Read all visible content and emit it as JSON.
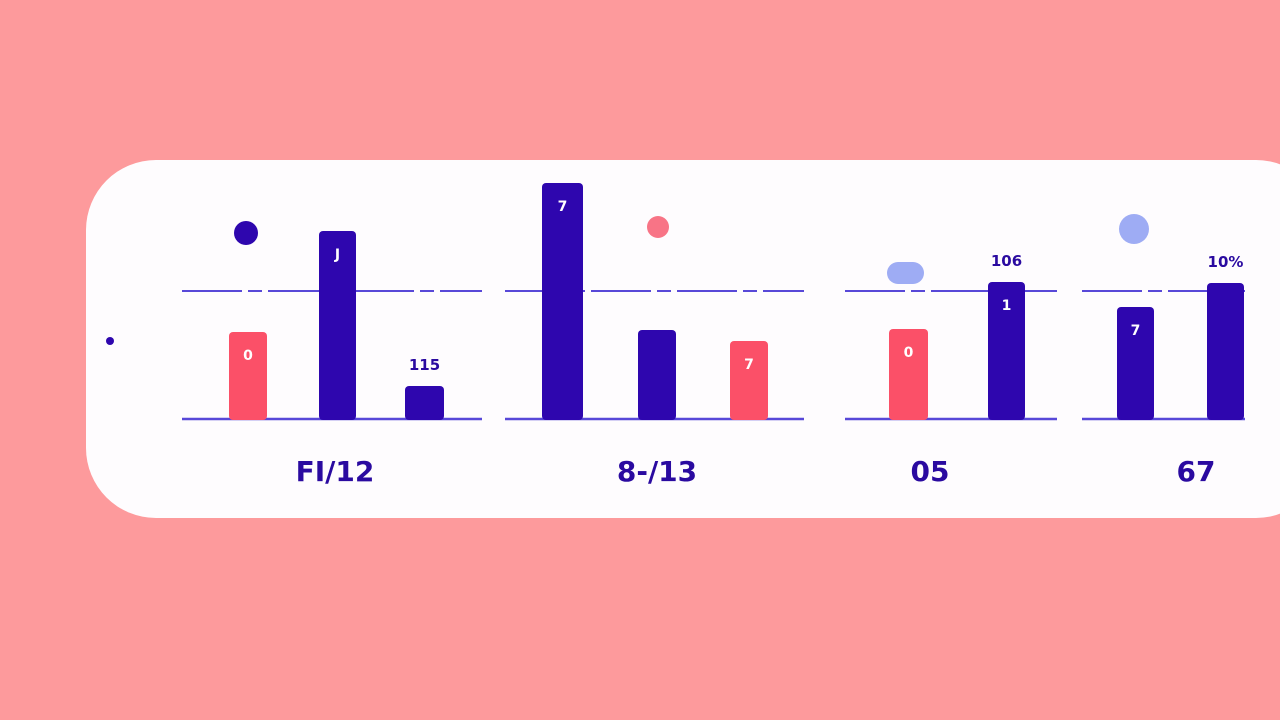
{
  "colors": {
    "background": "#fd9a9c",
    "card": "#fefcfe",
    "navy": "#2e06ae",
    "red": "#fb5068",
    "lavender": "#9eacf4",
    "axis": "#5848d8"
  },
  "chart_data": {
    "type": "bar",
    "ylim": [
      0,
      250
    ],
    "reference_line": 128,
    "grid": false,
    "groups": [
      {
        "label": "FI/12",
        "bars": [
          {
            "value": 87,
            "color": "red",
            "label": "0"
          },
          {
            "value": 188,
            "color": "navy",
            "label": "J"
          },
          {
            "value": 33,
            "color": "navy",
            "label": "",
            "top_label": "115"
          }
        ]
      },
      {
        "label": "8-/13",
        "bars": [
          {
            "value": 236,
            "color": "navy",
            "label": "7"
          },
          {
            "value": 89,
            "color": "navy",
            "label": ""
          },
          {
            "value": 78,
            "color": "red",
            "label": "7"
          }
        ]
      },
      {
        "label": "05",
        "bars": [
          {
            "value": 90,
            "color": "red",
            "label": "0"
          },
          {
            "value": 137,
            "color": "navy",
            "label": "1",
            "top_label": "106"
          }
        ]
      },
      {
        "label": "67",
        "bars": [
          {
            "value": 112,
            "color": "navy",
            "label": "7"
          },
          {
            "value": 136,
            "color": "navy",
            "label": "",
            "top_label": "10%"
          }
        ]
      }
    ]
  }
}
